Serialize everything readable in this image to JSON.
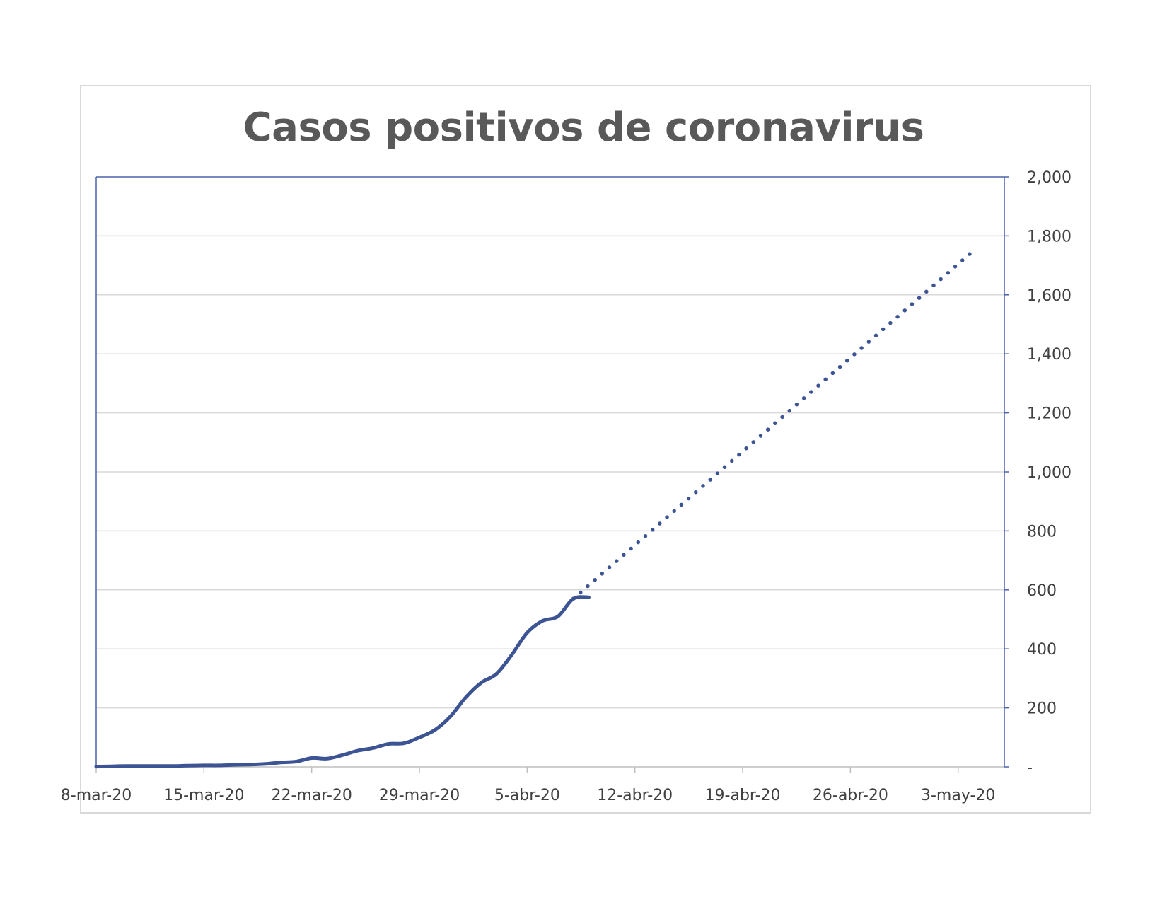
{
  "chart_data": {
    "type": "line",
    "title": "Casos positivos de coronavirus",
    "xlabel": "",
    "ylabel": "",
    "x_tick_labels": [
      "8-mar-20",
      "15-mar-20",
      "22-mar-20",
      "29-mar-20",
      "5-abr-20",
      "12-abr-20",
      "19-abr-20",
      "26-abr-20",
      "3-may-20"
    ],
    "x_tick_days": [
      0,
      7,
      14,
      21,
      28,
      35,
      42,
      49,
      56
    ],
    "xlim_days": [
      0,
      59
    ],
    "y_tick_labels": [
      "-",
      "200",
      "400",
      "600",
      "800",
      "1,000",
      "1,200",
      "1,400",
      "1,600",
      "1,800",
      "2,000"
    ],
    "y_tick_values": [
      0,
      200,
      400,
      600,
      800,
      1000,
      1200,
      1400,
      1600,
      1800,
      2000
    ],
    "ylim": [
      0,
      2000
    ],
    "y_axis_position": "right",
    "grid": true,
    "color": "#3d5494",
    "series": [
      {
        "style": "solid",
        "x": [
          "8-mar-20",
          "9-mar-20",
          "10-mar-20",
          "11-mar-20",
          "12-mar-20",
          "13-mar-20",
          "14-mar-20",
          "15-mar-20",
          "16-mar-20",
          "17-mar-20",
          "18-mar-20",
          "19-mar-20",
          "20-mar-20",
          "21-mar-20",
          "22-mar-20",
          "23-mar-20",
          "24-mar-20",
          "25-mar-20",
          "26-mar-20",
          "27-mar-20",
          "28-mar-20",
          "29-mar-20",
          "30-mar-20",
          "31-mar-20",
          "1-abr-20",
          "2-abr-20",
          "3-abr-20",
          "4-abr-20",
          "5-abr-20",
          "6-abr-20",
          "7-abr-20",
          "8-abr-20",
          "9-abr-20"
        ],
        "values": [
          1,
          2,
          3,
          3,
          3,
          3,
          4,
          5,
          5,
          7,
          8,
          10,
          15,
          18,
          30,
          28,
          40,
          55,
          64,
          78,
          80,
          100,
          125,
          170,
          235,
          285,
          315,
          380,
          455,
          495,
          510,
          570,
          575
        ]
      },
      {
        "style": "dotted",
        "x": [
          "8-abr-20",
          "4-may-20"
        ],
        "values": [
          570,
          1750
        ]
      }
    ]
  }
}
